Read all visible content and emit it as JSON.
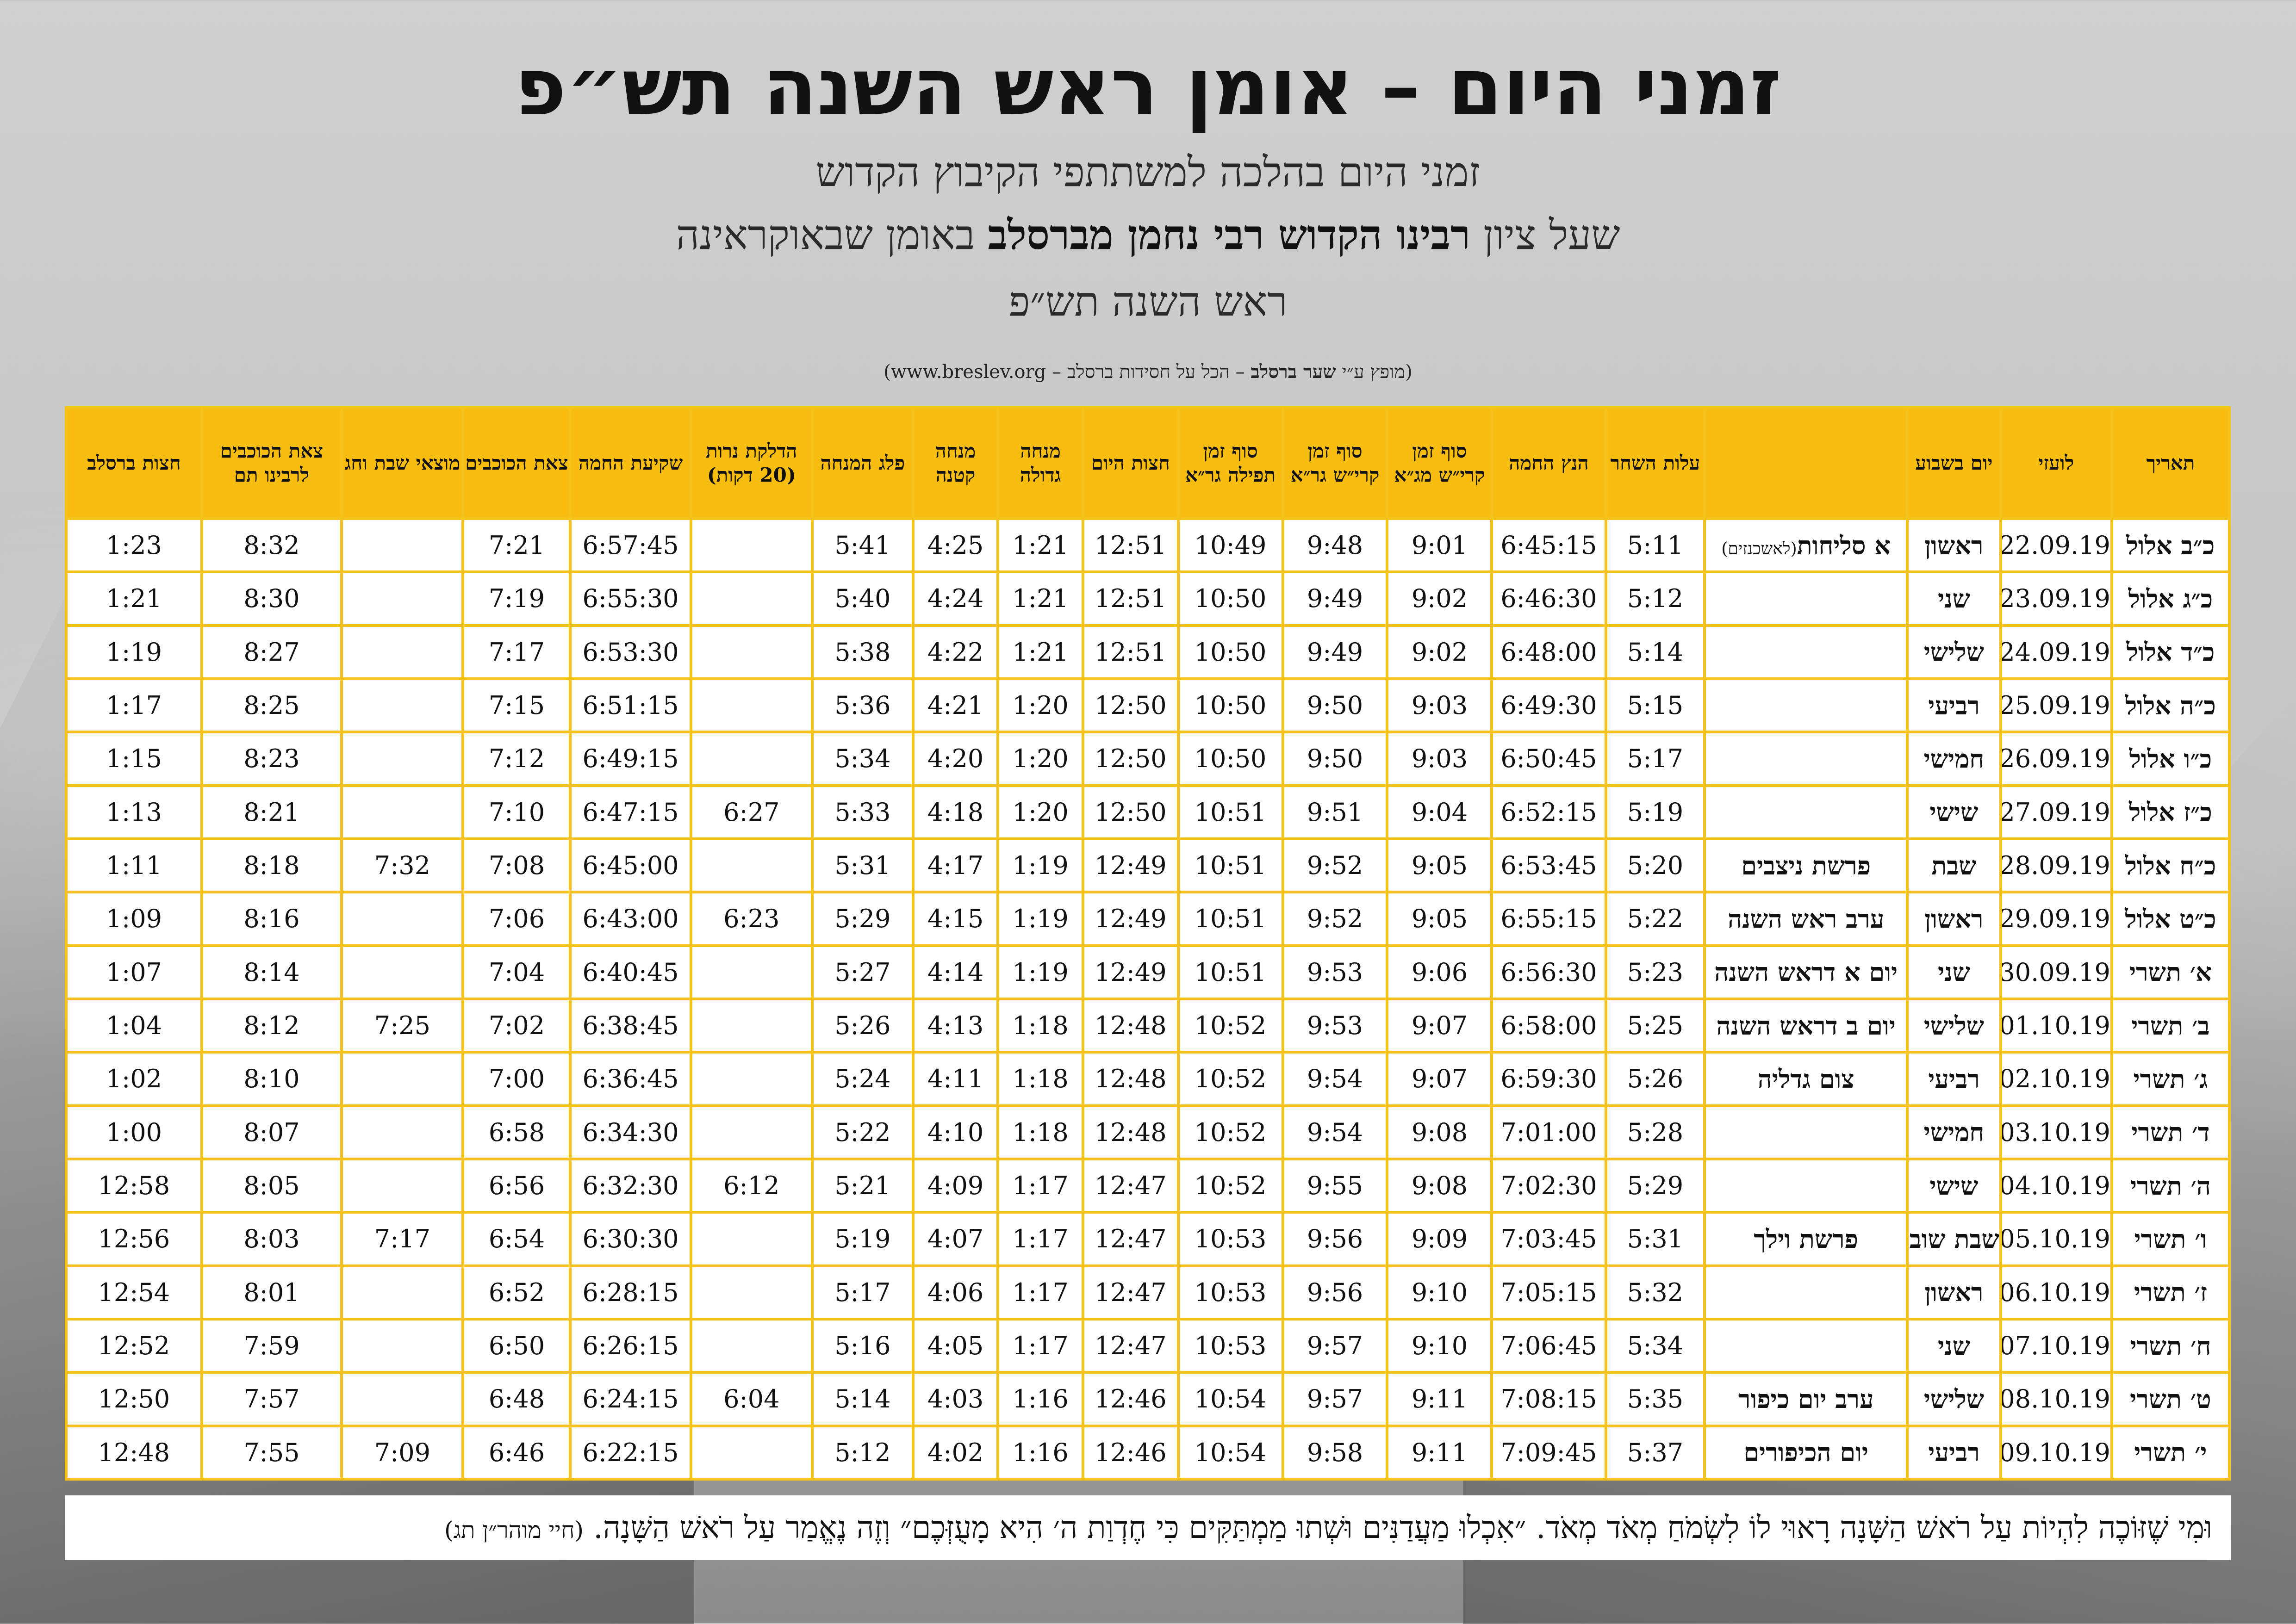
{
  "title": "זמני היום – אומן ראש השנה תש״פ",
  "subtitle_line1": "זמני היום בהלכה למשתתפי הקיבוץ הקדוש",
  "subtitle_line2_pre": "שעל ציון",
  "subtitle_line2_bold": "רבינו הקדוש רבי נחמן מברסלב",
  "subtitle_line2_post": "באומן שבאוקראינה",
  "subtitle_line3": "ראש השנה תש״פ",
  "credit_pre": "(מופץ ע״י",
  "credit_bold": "שער ברסלב",
  "credit_post": "– הכל על חסידות ברסלב – www.breslev.org)",
  "headers": {
    "date_he": "תאריך",
    "date_civil": "לועזי",
    "weekday": "יום בשבוע",
    "event": "",
    "dawn": "עלות השחר",
    "sunrise": "הנץ החמה",
    "shema_mga": "סוף זמן קרי״ש מג״א",
    "shema_gra": "סוף זמן קרי״ש גר״א",
    "tefila_gra": "סוף זמן תפילה גר״א",
    "chatzot": "חצות היום",
    "mincha_gedola": "מנחה גדולה",
    "mincha_ketana": "מנחה קטנה",
    "plag": "פלג המנחה",
    "candles": "הדלקת נרות (20 דקות)",
    "sunset": "שקיעת החמה",
    "tzeit": "צאת הכוכבים",
    "motzei": "מוצאי שבת וחג",
    "tzeit_rt": "צאת הכוכבים לרבינו תם",
    "chatzot_breslov": "חצות ברסלב"
  },
  "rows": [
    {
      "date_he": "כ״ב אלול",
      "date_civil": "22.09.19",
      "weekday": "ראשון",
      "event": "א סליחות",
      "event_small": "(לאשכנזים)",
      "dawn": "5:11",
      "sunrise": "6:45:15",
      "shema_mga": "9:01",
      "shema_gra": "9:48",
      "tefila_gra": "10:49",
      "chatzot": "12:51",
      "mincha_gedola": "1:21",
      "mincha_ketana": "4:25",
      "plag": "5:41",
      "candles": "",
      "sunset": "6:57:45",
      "tzeit": "7:21",
      "motzei": "",
      "tzeit_rt": "8:32",
      "chatzot_breslov": "1:23"
    },
    {
      "date_he": "כ״ג אלול",
      "date_civil": "23.09.19",
      "weekday": "שני",
      "event": "",
      "event_small": "",
      "dawn": "5:12",
      "sunrise": "6:46:30",
      "shema_mga": "9:02",
      "shema_gra": "9:49",
      "tefila_gra": "10:50",
      "chatzot": "12:51",
      "mincha_gedola": "1:21",
      "mincha_ketana": "4:24",
      "plag": "5:40",
      "candles": "",
      "sunset": "6:55:30",
      "tzeit": "7:19",
      "motzei": "",
      "tzeit_rt": "8:30",
      "chatzot_breslov": "1:21"
    },
    {
      "date_he": "כ״ד אלול",
      "date_civil": "24.09.19",
      "weekday": "שלישי",
      "event": "",
      "event_small": "",
      "dawn": "5:14",
      "sunrise": "6:48:00",
      "shema_mga": "9:02",
      "shema_gra": "9:49",
      "tefila_gra": "10:50",
      "chatzot": "12:51",
      "mincha_gedola": "1:21",
      "mincha_ketana": "4:22",
      "plag": "5:38",
      "candles": "",
      "sunset": "6:53:30",
      "tzeit": "7:17",
      "motzei": "",
      "tzeit_rt": "8:27",
      "chatzot_breslov": "1:19"
    },
    {
      "date_he": "כ״ה אלול",
      "date_civil": "25.09.19",
      "weekday": "רביעי",
      "event": "",
      "event_small": "",
      "dawn": "5:15",
      "sunrise": "6:49:30",
      "shema_mga": "9:03",
      "shema_gra": "9:50",
      "tefila_gra": "10:50",
      "chatzot": "12:50",
      "mincha_gedola": "1:20",
      "mincha_ketana": "4:21",
      "plag": "5:36",
      "candles": "",
      "sunset": "6:51:15",
      "tzeit": "7:15",
      "motzei": "",
      "tzeit_rt": "8:25",
      "chatzot_breslov": "1:17"
    },
    {
      "date_he": "כ״ו אלול",
      "date_civil": "26.09.19",
      "weekday": "חמישי",
      "event": "",
      "event_small": "",
      "dawn": "5:17",
      "sunrise": "6:50:45",
      "shema_mga": "9:03",
      "shema_gra": "9:50",
      "tefila_gra": "10:50",
      "chatzot": "12:50",
      "mincha_gedola": "1:20",
      "mincha_ketana": "4:20",
      "plag": "5:34",
      "candles": "",
      "sunset": "6:49:15",
      "tzeit": "7:12",
      "motzei": "",
      "tzeit_rt": "8:23",
      "chatzot_breslov": "1:15"
    },
    {
      "date_he": "כ״ז אלול",
      "date_civil": "27.09.19",
      "weekday": "שישי",
      "event": "",
      "event_small": "",
      "dawn": "5:19",
      "sunrise": "6:52:15",
      "shema_mga": "9:04",
      "shema_gra": "9:51",
      "tefila_gra": "10:51",
      "chatzot": "12:50",
      "mincha_gedola": "1:20",
      "mincha_ketana": "4:18",
      "plag": "5:33",
      "candles": "6:27",
      "sunset": "6:47:15",
      "tzeit": "7:10",
      "motzei": "",
      "tzeit_rt": "8:21",
      "chatzot_breslov": "1:13"
    },
    {
      "date_he": "כ״ח אלול",
      "date_civil": "28.09.19",
      "weekday": "שבת",
      "event": "פרשת ניצבים",
      "event_small": "",
      "dawn": "5:20",
      "sunrise": "6:53:45",
      "shema_mga": "9:05",
      "shema_gra": "9:52",
      "tefila_gra": "10:51",
      "chatzot": "12:49",
      "mincha_gedola": "1:19",
      "mincha_ketana": "4:17",
      "plag": "5:31",
      "candles": "",
      "sunset": "6:45:00",
      "tzeit": "7:08",
      "motzei": "7:32",
      "tzeit_rt": "8:18",
      "chatzot_breslov": "1:11"
    },
    {
      "date_he": "כ״ט אלול",
      "date_civil": "29.09.19",
      "weekday": "ראשון",
      "event": "ערב ראש השנה",
      "event_small": "",
      "dawn": "5:22",
      "sunrise": "6:55:15",
      "shema_mga": "9:05",
      "shema_gra": "9:52",
      "tefila_gra": "10:51",
      "chatzot": "12:49",
      "mincha_gedola": "1:19",
      "mincha_ketana": "4:15",
      "plag": "5:29",
      "candles": "6:23",
      "sunset": "6:43:00",
      "tzeit": "7:06",
      "motzei": "",
      "tzeit_rt": "8:16",
      "chatzot_breslov": "1:09"
    },
    {
      "date_he": "א׳ תשרי",
      "date_civil": "30.09.19",
      "weekday": "שני",
      "event": "יום א דראש השנה",
      "event_small": "",
      "dawn": "5:23",
      "sunrise": "6:56:30",
      "shema_mga": "9:06",
      "shema_gra": "9:53",
      "tefila_gra": "10:51",
      "chatzot": "12:49",
      "mincha_gedola": "1:19",
      "mincha_ketana": "4:14",
      "plag": "5:27",
      "candles": "",
      "sunset": "6:40:45",
      "tzeit": "7:04",
      "motzei": "",
      "tzeit_rt": "8:14",
      "chatzot_breslov": "1:07"
    },
    {
      "date_he": "ב׳ תשרי",
      "date_civil": "01.10.19",
      "weekday": "שלישי",
      "event": "יום ב דראש השנה",
      "event_small": "",
      "dawn": "5:25",
      "sunrise": "6:58:00",
      "shema_mga": "9:07",
      "shema_gra": "9:53",
      "tefila_gra": "10:52",
      "chatzot": "12:48",
      "mincha_gedola": "1:18",
      "mincha_ketana": "4:13",
      "plag": "5:26",
      "candles": "",
      "sunset": "6:38:45",
      "tzeit": "7:02",
      "motzei": "7:25",
      "tzeit_rt": "8:12",
      "chatzot_breslov": "1:04"
    },
    {
      "date_he": "ג׳ תשרי",
      "date_civil": "02.10.19",
      "weekday": "רביעי",
      "event": "צום גדליה",
      "event_small": "",
      "dawn": "5:26",
      "sunrise": "6:59:30",
      "shema_mga": "9:07",
      "shema_gra": "9:54",
      "tefila_gra": "10:52",
      "chatzot": "12:48",
      "mincha_gedola": "1:18",
      "mincha_ketana": "4:11",
      "plag": "5:24",
      "candles": "",
      "sunset": "6:36:45",
      "tzeit": "7:00",
      "motzei": "",
      "tzeit_rt": "8:10",
      "chatzot_breslov": "1:02"
    },
    {
      "date_he": "ד׳ תשרי",
      "date_civil": "03.10.19",
      "weekday": "חמישי",
      "event": "",
      "event_small": "",
      "dawn": "5:28",
      "sunrise": "7:01:00",
      "shema_mga": "9:08",
      "shema_gra": "9:54",
      "tefila_gra": "10:52",
      "chatzot": "12:48",
      "mincha_gedola": "1:18",
      "mincha_ketana": "4:10",
      "plag": "5:22",
      "candles": "",
      "sunset": "6:34:30",
      "tzeit": "6:58",
      "motzei": "",
      "tzeit_rt": "8:07",
      "chatzot_breslov": "1:00"
    },
    {
      "date_he": "ה׳ תשרי",
      "date_civil": "04.10.19",
      "weekday": "שישי",
      "event": "",
      "event_small": "",
      "dawn": "5:29",
      "sunrise": "7:02:30",
      "shema_mga": "9:08",
      "shema_gra": "9:55",
      "tefila_gra": "10:52",
      "chatzot": "12:47",
      "mincha_gedola": "1:17",
      "mincha_ketana": "4:09",
      "plag": "5:21",
      "candles": "6:12",
      "sunset": "6:32:30",
      "tzeit": "6:56",
      "motzei": "",
      "tzeit_rt": "8:05",
      "chatzot_breslov": "12:58"
    },
    {
      "date_he": "ו׳ תשרי",
      "date_civil": "05.10.19",
      "weekday": "שבת שובה",
      "event": "פרשת וילך",
      "event_small": "",
      "dawn": "5:31",
      "sunrise": "7:03:45",
      "shema_mga": "9:09",
      "shema_gra": "9:56",
      "tefila_gra": "10:53",
      "chatzot": "12:47",
      "mincha_gedola": "1:17",
      "mincha_ketana": "4:07",
      "plag": "5:19",
      "candles": "",
      "sunset": "6:30:30",
      "tzeit": "6:54",
      "motzei": "7:17",
      "tzeit_rt": "8:03",
      "chatzot_breslov": "12:56"
    },
    {
      "date_he": "ז׳ תשרי",
      "date_civil": "06.10.19",
      "weekday": "ראשון",
      "event": "",
      "event_small": "",
      "dawn": "5:32",
      "sunrise": "7:05:15",
      "shema_mga": "9:10",
      "shema_gra": "9:56",
      "tefila_gra": "10:53",
      "chatzot": "12:47",
      "mincha_gedola": "1:17",
      "mincha_ketana": "4:06",
      "plag": "5:17",
      "candles": "",
      "sunset": "6:28:15",
      "tzeit": "6:52",
      "motzei": "",
      "tzeit_rt": "8:01",
      "chatzot_breslov": "12:54"
    },
    {
      "date_he": "ח׳ תשרי",
      "date_civil": "07.10.19",
      "weekday": "שני",
      "event": "",
      "event_small": "",
      "dawn": "5:34",
      "sunrise": "7:06:45",
      "shema_mga": "9:10",
      "shema_gra": "9:57",
      "tefila_gra": "10:53",
      "chatzot": "12:47",
      "mincha_gedola": "1:17",
      "mincha_ketana": "4:05",
      "plag": "5:16",
      "candles": "",
      "sunset": "6:26:15",
      "tzeit": "6:50",
      "motzei": "",
      "tzeit_rt": "7:59",
      "chatzot_breslov": "12:52"
    },
    {
      "date_he": "ט׳ תשרי",
      "date_civil": "08.10.19",
      "weekday": "שלישי",
      "event": "ערב יום כיפור",
      "event_small": "",
      "dawn": "5:35",
      "sunrise": "7:08:15",
      "shema_mga": "9:11",
      "shema_gra": "9:57",
      "tefila_gra": "10:54",
      "chatzot": "12:46",
      "mincha_gedola": "1:16",
      "mincha_ketana": "4:03",
      "plag": "5:14",
      "candles": "6:04",
      "sunset": "6:24:15",
      "tzeit": "6:48",
      "motzei": "",
      "tzeit_rt": "7:57",
      "chatzot_breslov": "12:50"
    },
    {
      "date_he": "י׳ תשרי",
      "date_civil": "09.10.19",
      "weekday": "רביעי",
      "event": "יום הכיפורים",
      "event_small": "",
      "dawn": "5:37",
      "sunrise": "7:09:45",
      "shema_mga": "9:11",
      "shema_gra": "9:58",
      "tefila_gra": "10:54",
      "chatzot": "12:46",
      "mincha_gedola": "1:16",
      "mincha_ketana": "4:02",
      "plag": "5:12",
      "candles": "",
      "sunset": "6:22:15",
      "tzeit": "6:46",
      "motzei": "7:09",
      "tzeit_rt": "7:55",
      "chatzot_breslov": "12:48"
    }
  ],
  "footer_quote": "וּמִי שֶׁזּוֹכֶה לִהְיוֹת עַל רֹאשׁ הַשָּׁנָה רָאוּי לוֹ לִשְׂמֹחַ מְאֹד מְאֹד. ״אִכְלוּ מַעֲדַנִּים וּשְׁתוּ מַמְתַּקִּים כִּי חֶדְוַת ה׳ הִיא מָעֻזְּכֶם״ וְזֶה נֶאֱמַר עַל רֹאשׁ הַשָּׁנָה.",
  "footer_source": "(חיי מוהר״ן תג)",
  "colors": {
    "header_bg": "#f7bd10",
    "border": "#f5c21b",
    "cell_bg": "#ffffff"
  }
}
